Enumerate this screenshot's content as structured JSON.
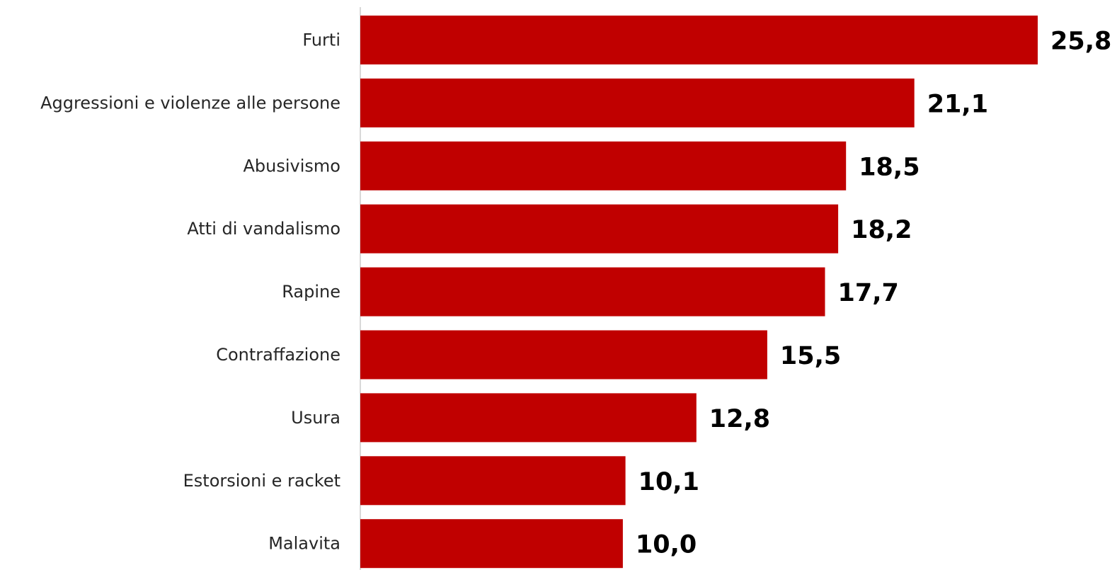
{
  "chart_data": {
    "type": "bar",
    "orientation": "horizontal",
    "categories": [
      "Furti",
      "Aggressioni e violenze alle persone",
      "Abusivismo",
      "Atti di vandalismo",
      "Rapine",
      "Contraffazione",
      "Usura",
      "Estorsioni e racket",
      "Malavita"
    ],
    "values": [
      25.8,
      21.1,
      18.5,
      18.2,
      17.7,
      15.5,
      12.8,
      10.1,
      10.0
    ],
    "value_labels": [
      "25,8",
      "21,1",
      "18,5",
      "18,2",
      "17,7",
      "15,5",
      "12,8",
      "10,1",
      "10,0"
    ],
    "title": "",
    "xlabel": "",
    "ylabel": "",
    "xlim": [
      0,
      25.8
    ],
    "grid": false,
    "legend": "none",
    "bar_color": "#c00000",
    "axis_color": "#d9d9d9"
  }
}
